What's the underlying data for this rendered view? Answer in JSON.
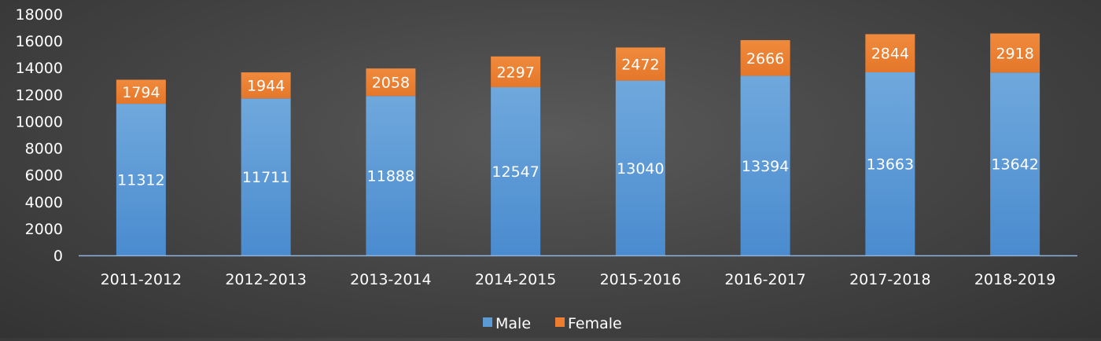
{
  "chart_data": {
    "type": "bar",
    "stacked": true,
    "categories": [
      "2011-2012",
      "2012-2013",
      "2013-2014",
      "2014-2015",
      "2015-2016",
      "2016-2017",
      "2017-2018",
      "2018-2019"
    ],
    "series": [
      {
        "name": "Male",
        "color": "#5b9bd5",
        "values": [
          11312,
          11711,
          11888,
          12547,
          13040,
          13394,
          13663,
          13642
        ]
      },
      {
        "name": "Female",
        "color": "#ed7d31",
        "values": [
          1794,
          1944,
          2058,
          2297,
          2472,
          2666,
          2844,
          2918
        ]
      }
    ],
    "yticks": [
      0,
      2000,
      4000,
      6000,
      8000,
      10000,
      12000,
      14000,
      16000,
      18000
    ],
    "ylim": [
      0,
      18000
    ],
    "grid": false,
    "legend_position": "bottom"
  }
}
